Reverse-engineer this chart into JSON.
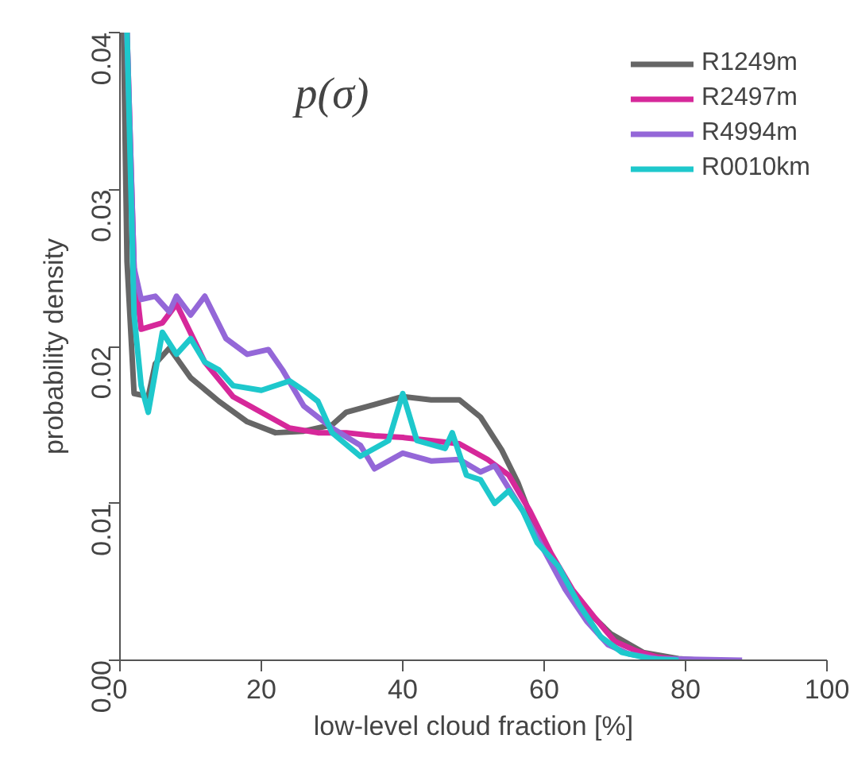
{
  "chart_data": {
    "type": "line",
    "title": "p(σ)",
    "xlabel": "low-level cloud fraction [%]",
    "ylabel": "probability density",
    "xlim": [
      0,
      100
    ],
    "ylim": [
      0,
      0.04
    ],
    "xticks": [
      0,
      20,
      40,
      60,
      80,
      100
    ],
    "yticks": [
      {
        "value": 0,
        "label": "0.00"
      },
      {
        "value": 0.01,
        "label": "0.01"
      },
      {
        "value": 0.02,
        "label": "0.02"
      },
      {
        "value": 0.03,
        "label": "0.03"
      },
      {
        "value": 0.04,
        "label": "0.04"
      }
    ],
    "grid": false,
    "legend": "top right",
    "marker": "none",
    "line_style": "solid",
    "series": [
      {
        "name": "R1249m",
        "color": "#666666",
        "x": [
          0.5,
          1,
          2,
          4,
          5,
          7,
          10,
          14,
          18,
          22,
          26,
          30,
          32,
          36,
          40,
          44,
          48,
          51,
          54,
          56.3,
          58.6,
          61,
          64.8,
          69.4,
          74,
          79,
          82
        ],
        "values": [
          0.04,
          0.0254,
          0.017,
          0.0168,
          0.0189,
          0.0199,
          0.018,
          0.0165,
          0.0152,
          0.0145,
          0.0146,
          0.015,
          0.0158,
          0.0163,
          0.0168,
          0.0166,
          0.0166,
          0.0155,
          0.0134,
          0.0113,
          0.0086,
          0.0065,
          0.0037,
          0.0017,
          0.0005,
          0.0001,
          0
        ]
      },
      {
        "name": "R2497m",
        "color": "#d6289a",
        "x": [
          1,
          2,
          3,
          6,
          8,
          12,
          16,
          20,
          24,
          28,
          32,
          36,
          40,
          44,
          48,
          52,
          55,
          58,
          61,
          64,
          67,
          70,
          73,
          76,
          80
        ],
        "values": [
          0.04,
          0.025,
          0.0211,
          0.0215,
          0.0227,
          0.019,
          0.0168,
          0.0158,
          0.0148,
          0.0145,
          0.0145,
          0.0143,
          0.0142,
          0.014,
          0.0138,
          0.0128,
          0.0118,
          0.0095,
          0.0068,
          0.0045,
          0.0028,
          0.0012,
          0.0006,
          0.0002,
          0
        ]
      },
      {
        "name": "R4994m",
        "color": "#9467d8",
        "x": [
          1,
          2,
          3,
          5,
          7,
          8,
          10,
          12,
          15,
          18,
          21,
          23,
          26,
          30,
          34,
          36,
          40,
          44,
          48,
          51,
          53,
          57,
          60,
          63,
          66,
          69,
          72,
          76,
          88
        ],
        "values": [
          0.04,
          0.025,
          0.023,
          0.0232,
          0.0222,
          0.0232,
          0.022,
          0.0232,
          0.0205,
          0.0195,
          0.0198,
          0.0185,
          0.0162,
          0.0148,
          0.0137,
          0.0122,
          0.0132,
          0.0127,
          0.0128,
          0.012,
          0.0124,
          0.0095,
          0.007,
          0.0045,
          0.0025,
          0.001,
          0.0004,
          0.0001,
          0
        ]
      },
      {
        "name": "R0010km",
        "color": "#1ec8cc",
        "x": [
          1,
          2,
          3,
          4,
          6,
          8,
          10,
          12,
          14,
          16,
          20,
          24,
          26,
          28,
          30,
          34,
          38,
          40,
          42,
          46,
          47,
          49,
          51,
          53,
          55,
          57,
          59,
          62,
          65,
          68,
          71,
          75,
          79
        ],
        "values": [
          0.04,
          0.022,
          0.0175,
          0.0158,
          0.0209,
          0.0195,
          0.0205,
          0.019,
          0.0185,
          0.0175,
          0.0172,
          0.0178,
          0.0172,
          0.0165,
          0.0145,
          0.013,
          0.014,
          0.017,
          0.014,
          0.0135,
          0.0145,
          0.0118,
          0.0115,
          0.01,
          0.0108,
          0.0095,
          0.0075,
          0.006,
          0.0035,
          0.0015,
          0.0005,
          0.0001,
          0
        ]
      }
    ]
  }
}
